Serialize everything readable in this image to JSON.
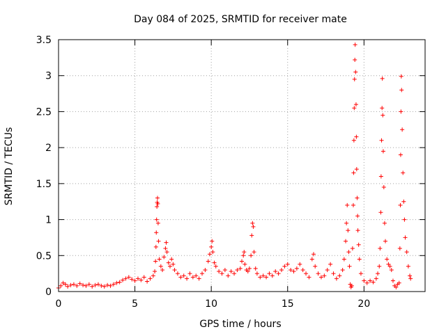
{
  "chart_data": {
    "type": "scatter",
    "title": "Day 084 of 2025, SRMTID for receiver mate",
    "xlabel": "GPS time / hours",
    "ylabel": "SRMTID / TECUs",
    "xlim": [
      0,
      24
    ],
    "ylim": [
      0,
      3.5
    ],
    "xticks": [
      0,
      5,
      10,
      15,
      20
    ],
    "xtick_labels": [
      "0",
      "5",
      "10",
      "15",
      "20"
    ],
    "yticks": [
      0,
      0.5,
      1,
      1.5,
      2,
      2.5,
      3,
      3.5
    ],
    "ytick_labels": [
      "0",
      "0.5",
      "1",
      "1.5",
      "2",
      "2.5",
      "3",
      "3.5"
    ],
    "grid": true,
    "marker": "+",
    "color": "#ff0000",
    "series": [
      {
        "name": "SRMTID",
        "points": [
          [
            0.0,
            0.05
          ],
          [
            0.15,
            0.08
          ],
          [
            0.3,
            0.12
          ],
          [
            0.45,
            0.1
          ],
          [
            0.6,
            0.07
          ],
          [
            0.8,
            0.09
          ],
          [
            1.0,
            0.1
          ],
          [
            1.2,
            0.08
          ],
          [
            1.4,
            0.11
          ],
          [
            1.6,
            0.09
          ],
          [
            1.8,
            0.08
          ],
          [
            2.0,
            0.1
          ],
          [
            2.2,
            0.07
          ],
          [
            2.4,
            0.09
          ],
          [
            2.6,
            0.1
          ],
          [
            2.8,
            0.08
          ],
          [
            3.0,
            0.07
          ],
          [
            3.2,
            0.09
          ],
          [
            3.4,
            0.08
          ],
          [
            3.6,
            0.1
          ],
          [
            3.8,
            0.12
          ],
          [
            4.0,
            0.13
          ],
          [
            4.2,
            0.16
          ],
          [
            4.4,
            0.18
          ],
          [
            4.6,
            0.2
          ],
          [
            4.8,
            0.17
          ],
          [
            5.0,
            0.15
          ],
          [
            5.2,
            0.18
          ],
          [
            5.4,
            0.16
          ],
          [
            5.6,
            0.2
          ],
          [
            5.8,
            0.14
          ],
          [
            6.0,
            0.18
          ],
          [
            6.2,
            0.22
          ],
          [
            6.3,
            0.28
          ],
          [
            6.35,
            0.42
          ],
          [
            6.38,
            0.62
          ],
          [
            6.4,
            0.82
          ],
          [
            6.42,
            1.0
          ],
          [
            6.44,
            1.18
          ],
          [
            6.46,
            1.24
          ],
          [
            6.48,
            1.3
          ],
          [
            6.5,
            1.22
          ],
          [
            6.52,
            0.95
          ],
          [
            6.55,
            0.7
          ],
          [
            6.6,
            0.45
          ],
          [
            6.7,
            0.35
          ],
          [
            6.8,
            0.3
          ],
          [
            6.9,
            0.48
          ],
          [
            7.0,
            0.6
          ],
          [
            7.05,
            0.68
          ],
          [
            7.1,
            0.55
          ],
          [
            7.2,
            0.4
          ],
          [
            7.3,
            0.35
          ],
          [
            7.4,
            0.45
          ],
          [
            7.5,
            0.38
          ],
          [
            7.6,
            0.3
          ],
          [
            7.8,
            0.25
          ],
          [
            8.0,
            0.2
          ],
          [
            8.2,
            0.22
          ],
          [
            8.4,
            0.18
          ],
          [
            8.6,
            0.25
          ],
          [
            8.8,
            0.2
          ],
          [
            9.0,
            0.22
          ],
          [
            9.2,
            0.18
          ],
          [
            9.4,
            0.25
          ],
          [
            9.6,
            0.3
          ],
          [
            9.8,
            0.42
          ],
          [
            9.9,
            0.52
          ],
          [
            10.0,
            0.62
          ],
          [
            10.05,
            0.7
          ],
          [
            10.1,
            0.55
          ],
          [
            10.2,
            0.4
          ],
          [
            10.3,
            0.35
          ],
          [
            10.5,
            0.28
          ],
          [
            10.7,
            0.25
          ],
          [
            10.9,
            0.3
          ],
          [
            11.1,
            0.22
          ],
          [
            11.3,
            0.28
          ],
          [
            11.5,
            0.25
          ],
          [
            11.7,
            0.3
          ],
          [
            11.9,
            0.32
          ],
          [
            12.0,
            0.42
          ],
          [
            12.1,
            0.5
          ],
          [
            12.15,
            0.55
          ],
          [
            12.2,
            0.38
          ],
          [
            12.3,
            0.3
          ],
          [
            12.4,
            0.28
          ],
          [
            12.5,
            0.32
          ],
          [
            12.6,
            0.5
          ],
          [
            12.65,
            0.78
          ],
          [
            12.7,
            0.95
          ],
          [
            12.75,
            0.9
          ],
          [
            12.8,
            0.55
          ],
          [
            12.9,
            0.32
          ],
          [
            13.0,
            0.25
          ],
          [
            13.2,
            0.2
          ],
          [
            13.4,
            0.22
          ],
          [
            13.6,
            0.2
          ],
          [
            13.8,
            0.25
          ],
          [
            14.0,
            0.22
          ],
          [
            14.2,
            0.28
          ],
          [
            14.4,
            0.25
          ],
          [
            14.6,
            0.3
          ],
          [
            14.8,
            0.35
          ],
          [
            15.0,
            0.38
          ],
          [
            15.2,
            0.3
          ],
          [
            15.4,
            0.28
          ],
          [
            15.6,
            0.32
          ],
          [
            15.8,
            0.38
          ],
          [
            16.0,
            0.3
          ],
          [
            16.2,
            0.25
          ],
          [
            16.4,
            0.2
          ],
          [
            16.6,
            0.45
          ],
          [
            16.7,
            0.52
          ],
          [
            16.8,
            0.35
          ],
          [
            17.0,
            0.25
          ],
          [
            17.2,
            0.2
          ],
          [
            17.4,
            0.22
          ],
          [
            17.6,
            0.3
          ],
          [
            17.8,
            0.38
          ],
          [
            18.0,
            0.25
          ],
          [
            18.2,
            0.18
          ],
          [
            18.4,
            0.22
          ],
          [
            18.6,
            0.3
          ],
          [
            18.7,
            0.45
          ],
          [
            18.8,
            0.7
          ],
          [
            18.85,
            0.95
          ],
          [
            18.9,
            1.2
          ],
          [
            18.95,
            0.85
          ],
          [
            19.0,
            0.55
          ],
          [
            19.05,
            0.35
          ],
          [
            19.1,
            0.1
          ],
          [
            19.15,
            0.06
          ],
          [
            19.2,
            0.08
          ],
          [
            19.25,
            0.6
          ],
          [
            19.3,
            1.2
          ],
          [
            19.32,
            1.65
          ],
          [
            19.34,
            2.1
          ],
          [
            19.36,
            2.55
          ],
          [
            19.38,
            2.95
          ],
          [
            19.4,
            3.22
          ],
          [
            19.42,
            3.43
          ],
          [
            19.45,
            3.05
          ],
          [
            19.48,
            2.6
          ],
          [
            19.5,
            2.15
          ],
          [
            19.52,
            1.7
          ],
          [
            19.55,
            1.3
          ],
          [
            19.58,
            1.05
          ],
          [
            19.6,
            0.85
          ],
          [
            19.65,
            0.65
          ],
          [
            19.7,
            0.45
          ],
          [
            19.8,
            0.25
          ],
          [
            20.0,
            0.15
          ],
          [
            20.2,
            0.12
          ],
          [
            20.4,
            0.15
          ],
          [
            20.6,
            0.13
          ],
          [
            20.8,
            0.18
          ],
          [
            20.9,
            0.25
          ],
          [
            21.0,
            0.35
          ],
          [
            21.05,
            0.6
          ],
          [
            21.1,
            1.1
          ],
          [
            21.12,
            1.6
          ],
          [
            21.15,
            2.1
          ],
          [
            21.18,
            2.55
          ],
          [
            21.2,
            2.96
          ],
          [
            21.23,
            2.45
          ],
          [
            21.26,
            1.95
          ],
          [
            21.3,
            1.45
          ],
          [
            21.35,
            0.95
          ],
          [
            21.4,
            0.7
          ],
          [
            21.5,
            0.45
          ],
          [
            21.6,
            0.38
          ],
          [
            21.7,
            0.35
          ],
          [
            21.8,
            0.3
          ],
          [
            21.9,
            0.15
          ],
          [
            22.0,
            0.08
          ],
          [
            22.1,
            0.06
          ],
          [
            22.2,
            0.1
          ],
          [
            22.3,
            0.12
          ],
          [
            22.35,
            0.6
          ],
          [
            22.38,
            1.2
          ],
          [
            22.4,
            1.9
          ],
          [
            22.42,
            2.5
          ],
          [
            22.44,
            2.99
          ],
          [
            22.46,
            2.8
          ],
          [
            22.5,
            2.25
          ],
          [
            22.55,
            1.65
          ],
          [
            22.6,
            1.25
          ],
          [
            22.65,
            1.0
          ],
          [
            22.7,
            0.75
          ],
          [
            22.8,
            0.55
          ],
          [
            22.9,
            0.35
          ],
          [
            23.0,
            0.22
          ],
          [
            23.05,
            0.18
          ]
        ]
      }
    ]
  }
}
